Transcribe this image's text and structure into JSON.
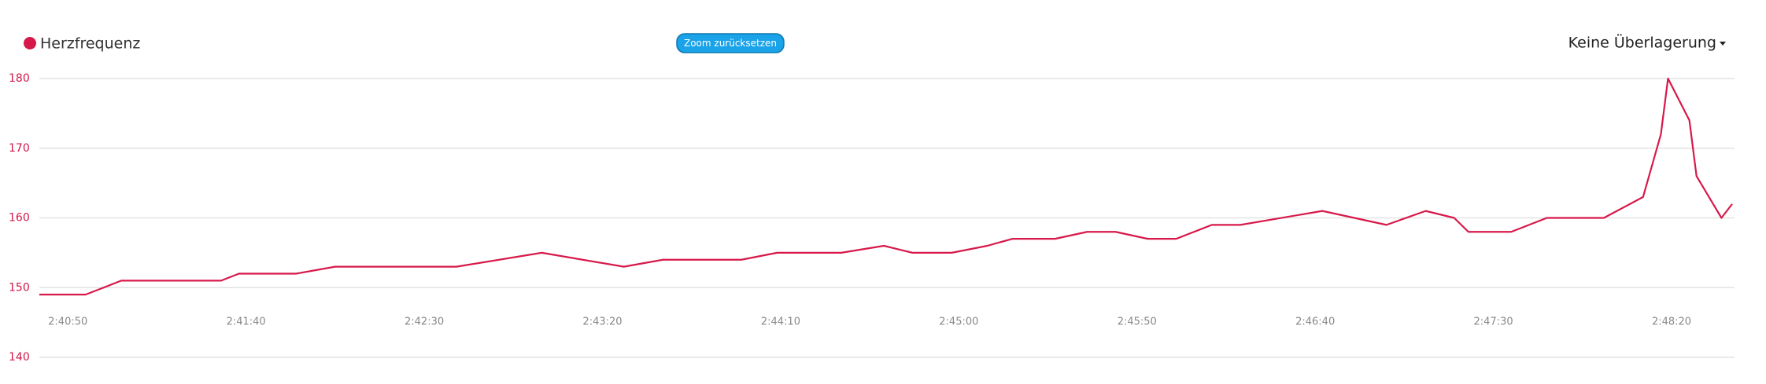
{
  "chart_data": {
    "type": "line",
    "x": [
      "2:40:42",
      "2:40:55",
      "2:41:05",
      "2:41:33",
      "2:41:38",
      "2:41:54",
      "2:42:05",
      "2:42:39",
      "2:43:03",
      "2:43:26",
      "2:43:37",
      "2:43:59",
      "2:44:09",
      "2:44:27",
      "2:44:39",
      "2:44:47",
      "2:44:58",
      "2:45:08",
      "2:45:15",
      "2:45:27",
      "2:45:36",
      "2:45:44",
      "2:45:53",
      "2:46:01",
      "2:46:11",
      "2:46:19",
      "2:46:42",
      "2:47:00",
      "2:47:11",
      "2:47:19",
      "2:47:23",
      "2:47:35",
      "2:47:45",
      "2:48:01",
      "2:48:12",
      "2:48:17",
      "2:48:19",
      "2:48:25",
      "2:48:27",
      "2:48:34",
      "2:48:37"
    ],
    "series": [
      {
        "name": "Herzfrequenz",
        "color": "#d7194a",
        "values": [
          149,
          149,
          151,
          151,
          152,
          152,
          153,
          153,
          155,
          153,
          154,
          154,
          155,
          155,
          156,
          155,
          155,
          156,
          157,
          157,
          158,
          158,
          157,
          157,
          159,
          159,
          161,
          159,
          161,
          160,
          158,
          158,
          160,
          160,
          163,
          172,
          180,
          174,
          166,
          160,
          162
        ]
      }
    ],
    "xlim": [
      "2:40:42",
      "2:48:37"
    ],
    "xticks": [
      "2:40:50",
      "2:41:40",
      "2:42:30",
      "2:43:20",
      "2:44:10",
      "2:45:00",
      "2:45:50",
      "2:46:40",
      "2:47:30",
      "2:48:20"
    ],
    "ylim": [
      140,
      180
    ],
    "yticks": [
      140,
      150,
      160,
      170,
      180
    ],
    "grid": true
  },
  "controls": {
    "reset_zoom": "Zoom zurücksetzen",
    "overlay": "Keine Überlagerung"
  }
}
